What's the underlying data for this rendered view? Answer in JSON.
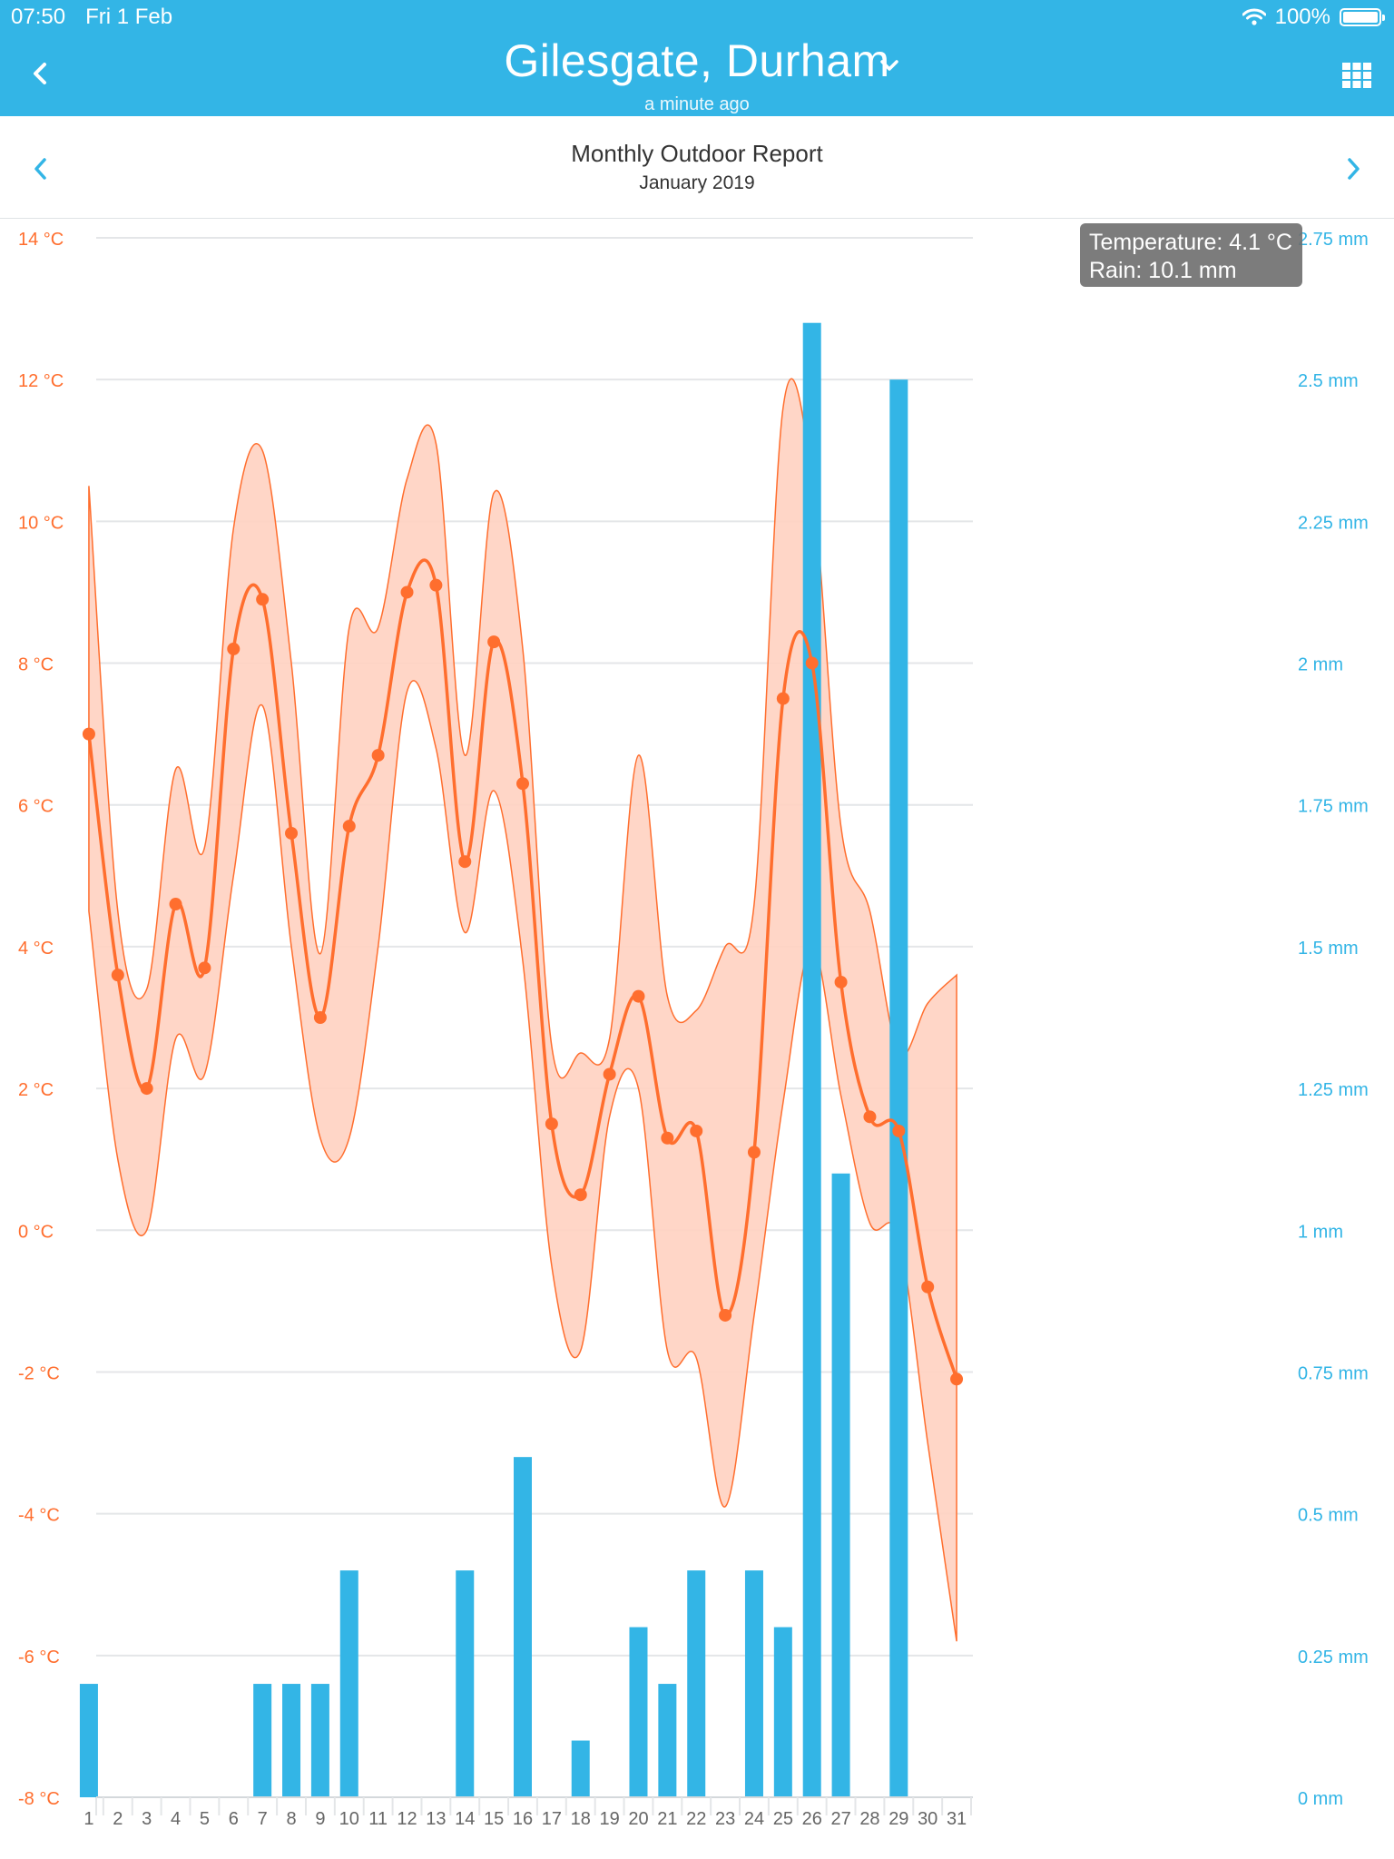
{
  "status": {
    "time": "07:50",
    "date": "Fri 1 Feb",
    "battery": "100%"
  },
  "header": {
    "location": "Gilesgate, Durham",
    "updated": "a minute ago"
  },
  "report": {
    "title": "Monthly Outdoor Report",
    "period": "January 2019"
  },
  "tooltip": {
    "temperature": "Temperature: 4.1 °C",
    "rain": "Rain: 10.1 mm"
  },
  "colors": {
    "header_bg": "#33b5e6",
    "temperature": "#ff6e2e",
    "temp_band": "#ffd2c1",
    "rain": "#33b5e6"
  },
  "icons": {
    "back": "chevron-left-icon",
    "dropdown": "chevron-down-icon",
    "menu": "grid-icon",
    "prev": "chevron-left-icon",
    "next": "chevron-right-icon"
  },
  "chart_data": {
    "type": "bar+line",
    "x_ticks": [
      "1",
      "2",
      "3",
      "4",
      "5",
      "6",
      "7",
      "8",
      "9",
      "10",
      "11",
      "12",
      "13",
      "14",
      "15",
      "16",
      "17",
      "18",
      "19",
      "20",
      "21",
      "22",
      "23",
      "24",
      "25",
      "26",
      "27",
      "28",
      "29",
      "30",
      "31"
    ],
    "y_left": {
      "unit": "°C",
      "range": [
        -8,
        14
      ],
      "ticks": [
        "14 °C",
        "12 °C",
        "10 °C",
        "8 °C",
        "6 °C",
        "4 °C",
        "2 °C",
        "0 °C",
        "-2 °C",
        "-4 °C",
        "-6 °C",
        "-8 °C"
      ]
    },
    "y_right": {
      "unit": "mm",
      "range": [
        0,
        2.75
      ],
      "ticks": [
        "2.75 mm",
        "2.5 mm",
        "2.25 mm",
        "2 mm",
        "1.75 mm",
        "1.5 mm",
        "1.25 mm",
        "1 mm",
        "0.75 mm",
        "0.5 mm",
        "0.25 mm",
        "0 mm"
      ]
    },
    "series": [
      {
        "axis": "left",
        "type": "line",
        "values": [
          7.0,
          3.6,
          2.0,
          4.6,
          3.7,
          8.2,
          8.9,
          5.6,
          3.0,
          5.7,
          6.7,
          9.0,
          9.1,
          5.2,
          8.3,
          6.3,
          1.5,
          0.5,
          2.2,
          3.3,
          1.3,
          1.4,
          -1.2,
          1.1,
          7.5,
          8.0,
          3.5,
          1.6,
          1.4,
          -0.8,
          -2.1
        ]
      },
      {
        "axis": "left",
        "type": "band",
        "max": [
          10.5,
          4.5,
          3.4,
          6.5,
          5.4,
          9.9,
          11.0,
          8.0,
          3.9,
          8.5,
          8.5,
          10.6,
          11.1,
          6.7,
          10.4,
          8.2,
          2.6,
          2.5,
          2.7,
          6.7,
          3.3,
          3.1,
          4.0,
          4.6,
          11.6,
          10.6,
          5.7,
          4.5,
          2.5,
          3.2,
          3.6
        ],
        "min": [
          4.5,
          1.0,
          0.0,
          2.7,
          2.2,
          5.0,
          7.4,
          4.0,
          1.3,
          1.3,
          4.0,
          7.6,
          6.8,
          4.2,
          6.2,
          3.8,
          -0.5,
          -1.7,
          1.6,
          2.0,
          -1.7,
          -1.8,
          -3.9,
          -1.2,
          1.8,
          4.0,
          1.9,
          0.1,
          -0.1,
          -3.0,
          -5.8
        ]
      },
      {
        "axis": "right",
        "type": "bar",
        "values": [
          0.2,
          0,
          0,
          0,
          0,
          0,
          0.2,
          0.2,
          0.2,
          0.4,
          0,
          0,
          0,
          0.4,
          0,
          0.6,
          0,
          0.1,
          0,
          0.3,
          0.2,
          0.4,
          0,
          0.4,
          0.3,
          2.6,
          1.1,
          0,
          2.5,
          0,
          0
        ]
      }
    ]
  }
}
